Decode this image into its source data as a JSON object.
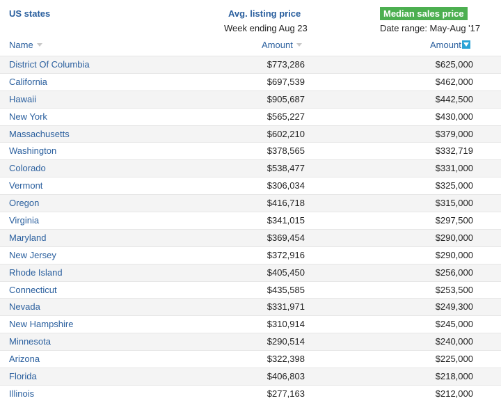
{
  "header": {
    "us_states": "US states",
    "avg_listing": {
      "title": "Avg. listing price",
      "subtitle": "Week ending Aug 23"
    },
    "median_sales": {
      "title": "Median sales price",
      "subtitle": "Date range: May-Aug '17"
    },
    "columns": {
      "name": "Name",
      "amount_listing": "Amount",
      "amount_sales": "Amount"
    }
  },
  "colors": {
    "link": "#2a5f9e",
    "badge": "#4caf50",
    "sort_active": "#29a3d6",
    "row_alt": "#f4f4f4"
  },
  "rows": [
    {
      "state": "District Of Columbia",
      "listing": "$773,286",
      "sales": "$625,000"
    },
    {
      "state": "California",
      "listing": "$697,539",
      "sales": "$462,000"
    },
    {
      "state": "Hawaii",
      "listing": "$905,687",
      "sales": "$442,500"
    },
    {
      "state": "New York",
      "listing": "$565,227",
      "sales": "$430,000"
    },
    {
      "state": "Massachusetts",
      "listing": "$602,210",
      "sales": "$379,000"
    },
    {
      "state": "Washington",
      "listing": "$378,565",
      "sales": "$332,719"
    },
    {
      "state": "Colorado",
      "listing": "$538,477",
      "sales": "$331,000"
    },
    {
      "state": "Vermont",
      "listing": "$306,034",
      "sales": "$325,000"
    },
    {
      "state": "Oregon",
      "listing": "$416,718",
      "sales": "$315,000"
    },
    {
      "state": "Virginia",
      "listing": "$341,015",
      "sales": "$297,500"
    },
    {
      "state": "Maryland",
      "listing": "$369,454",
      "sales": "$290,000"
    },
    {
      "state": "New Jersey",
      "listing": "$372,916",
      "sales": "$290,000"
    },
    {
      "state": "Rhode Island",
      "listing": "$405,450",
      "sales": "$256,000"
    },
    {
      "state": "Connecticut",
      "listing": "$435,585",
      "sales": "$253,500"
    },
    {
      "state": "Nevada",
      "listing": "$331,971",
      "sales": "$249,300"
    },
    {
      "state": "New Hampshire",
      "listing": "$310,914",
      "sales": "$245,000"
    },
    {
      "state": "Minnesota",
      "listing": "$290,514",
      "sales": "$240,000"
    },
    {
      "state": "Arizona",
      "listing": "$322,398",
      "sales": "$225,000"
    },
    {
      "state": "Florida",
      "listing": "$406,803",
      "sales": "$218,000"
    },
    {
      "state": "Illinois",
      "listing": "$277,163",
      "sales": "$212,000"
    }
  ]
}
